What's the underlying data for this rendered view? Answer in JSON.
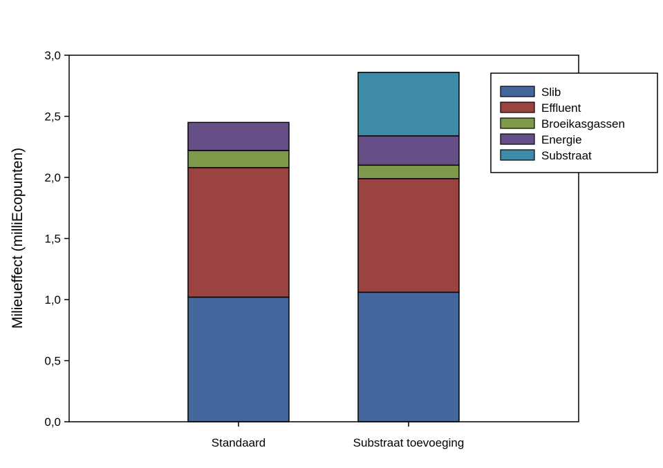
{
  "chart_data": {
    "type": "bar",
    "stacked": true,
    "title": "",
    "xlabel": "",
    "ylabel": "Milieueffect (milliEcopunten)",
    "ylim": [
      0,
      3.0
    ],
    "yticks": [
      "0,0",
      "0,5",
      "1,0",
      "1,5",
      "2,0",
      "2,5",
      "3,0"
    ],
    "grid": false,
    "legend_position": "top-right",
    "categories": [
      "Standaard",
      "Substraat toevoeging"
    ],
    "series": [
      {
        "name": "Slib",
        "color": "#43679c",
        "values": [
          1.02,
          1.06
        ]
      },
      {
        "name": "Effluent",
        "color": "#9b4341",
        "values": [
          1.06,
          0.93
        ]
      },
      {
        "name": "Broeikasgassen",
        "color": "#7f994b",
        "values": [
          0.14,
          0.11
        ]
      },
      {
        "name": "Energie",
        "color": "#664f86",
        "values": [
          0.23,
          0.24
        ]
      },
      {
        "name": "Substraat",
        "color": "#3d8ba6",
        "values": [
          0,
          0.52
        ]
      }
    ]
  }
}
